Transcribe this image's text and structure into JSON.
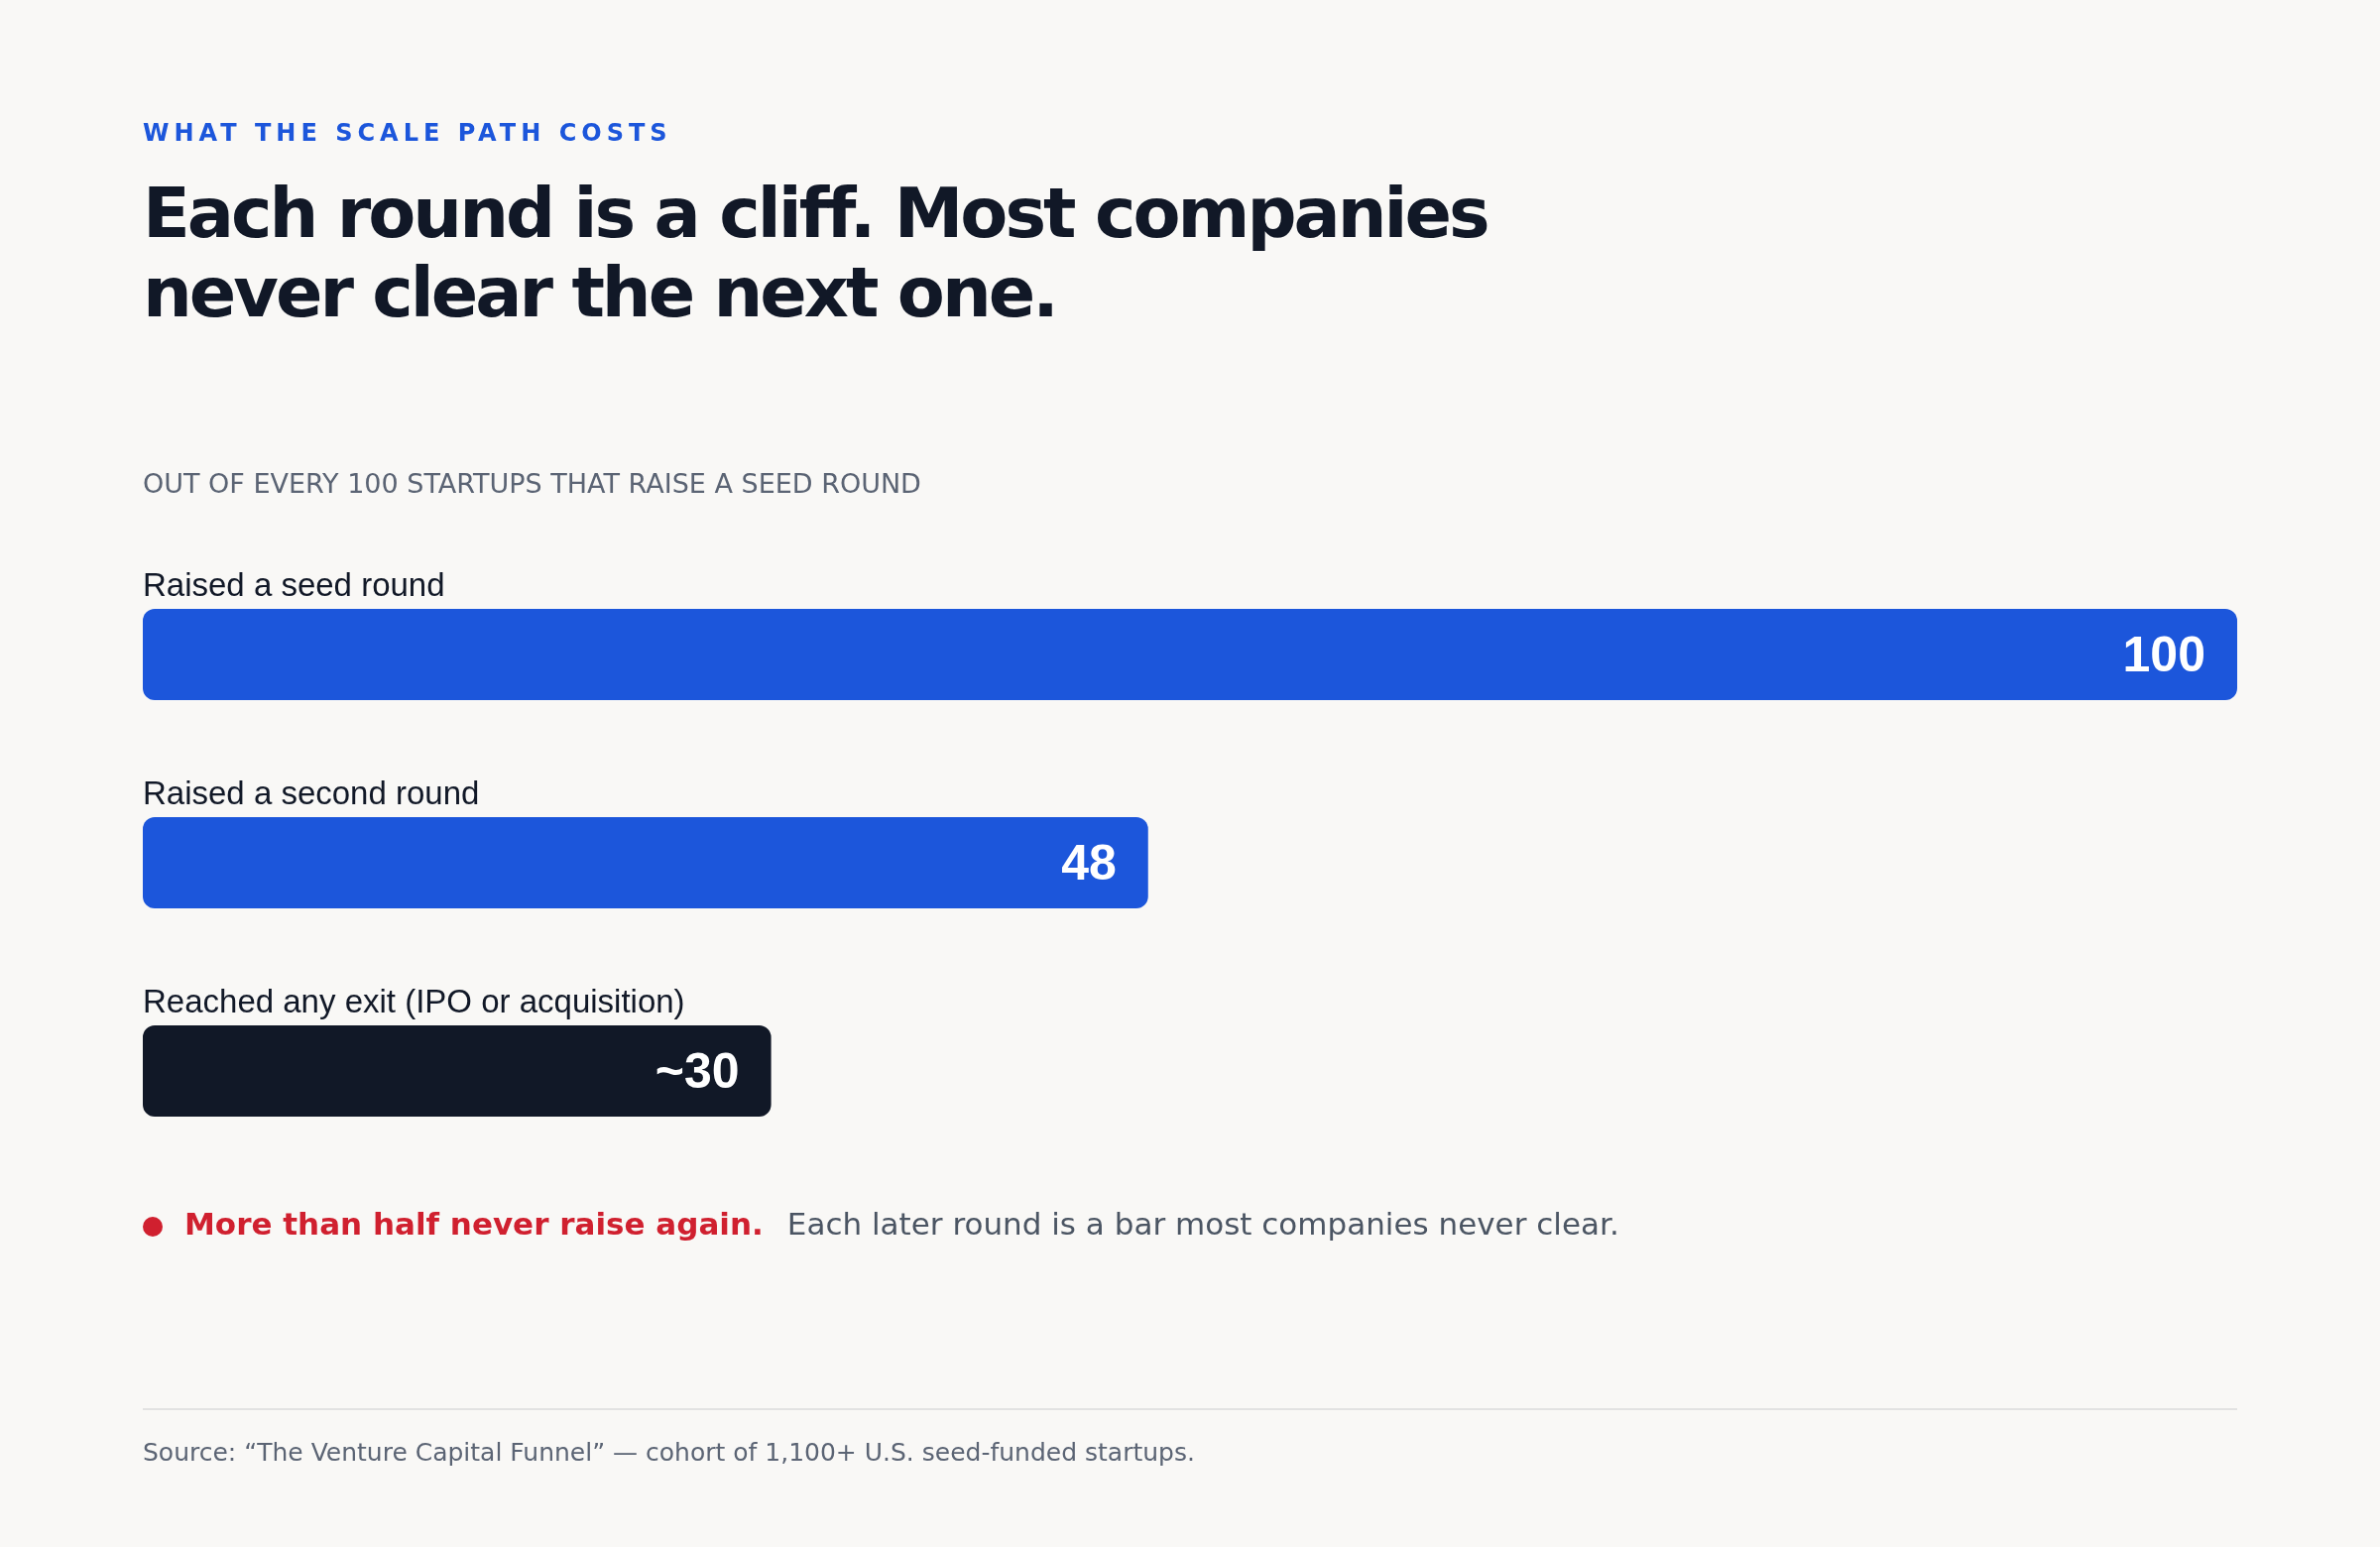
{
  "chart_data": {
    "type": "bar",
    "orientation": "horizontal",
    "title": "Each round is a cliff. Most companies never clear the next one.",
    "subtitle": "WHAT THE SCALE PATH COSTS",
    "annotations": [
      "OUT OF EVERY 100 STARTUPS THAT RAISE A SEED ROUND",
      "More than half never raise again.",
      "Each later round is a bar most companies never clear.",
      "Source: “The Venture Capital Funnel” — cohort of 1,100+ U.S. seed-funded startups."
    ],
    "categories": [
      "Raised a seed round",
      "Raised a second round",
      "Reached any exit (IPO or acquisition)"
    ],
    "values": [
      100,
      48,
      30
    ],
    "value_labels": [
      "100",
      "48",
      "~30"
    ],
    "colors": [
      "#1c56db",
      "#1c56db",
      "#111827"
    ]
  }
}
